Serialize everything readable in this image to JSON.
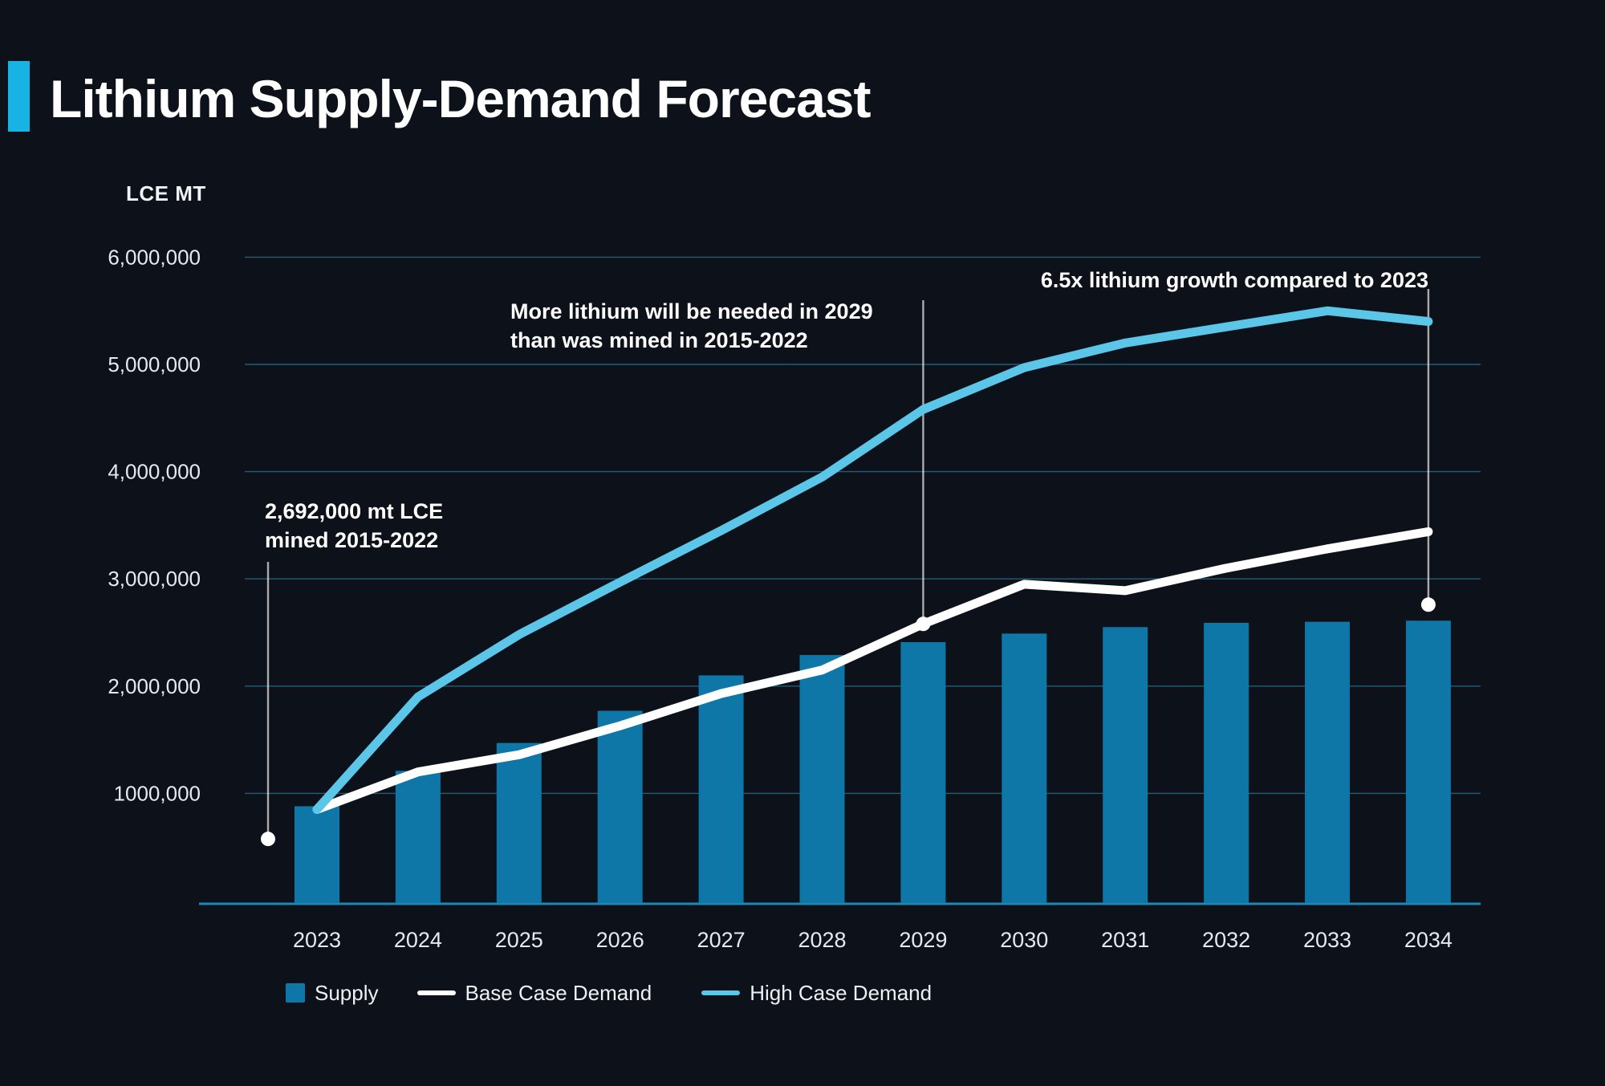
{
  "title": "Lithium Supply-Demand Forecast",
  "unit_label": "LCE MT",
  "colors": {
    "background": "#0d1119",
    "accent_bar": "#18b3e5",
    "supply_bar": "#0e77a7",
    "base_case_line": "#ffffff",
    "high_case_line": "#5cc6e9",
    "gridline": "#255d78",
    "baseline": "#1e88b5",
    "axis_text": "#e6eaee",
    "annotation_line": "rgba(255,255,255,0.65)"
  },
  "chart_data": {
    "type": "bar",
    "subtype": "bar-line combo",
    "categories": [
      "2023",
      "2024",
      "2025",
      "2026",
      "2027",
      "2028",
      "2029",
      "2030",
      "2031",
      "2032",
      "2033",
      "2034"
    ],
    "series": [
      {
        "name": "Supply",
        "type": "bar",
        "color": "#0e77a7",
        "values": [
          880000,
          1210000,
          1470000,
          1770000,
          2100000,
          2290000,
          2410000,
          2490000,
          2550000,
          2590000,
          2600000,
          2610000
        ]
      },
      {
        "name": "Base Case Demand",
        "type": "line",
        "color": "#ffffff",
        "values": [
          850000,
          1200000,
          1360000,
          1630000,
          1930000,
          2150000,
          2580000,
          2950000,
          2890000,
          3100000,
          3280000,
          3440000
        ]
      },
      {
        "name": "High Case Demand",
        "type": "line",
        "color": "#5cc6e9",
        "values": [
          850000,
          1900000,
          2480000,
          2970000,
          3450000,
          3950000,
          4580000,
          4970000,
          5200000,
          5350000,
          5500000,
          5400000
        ]
      }
    ],
    "title": "Lithium Supply-Demand Forecast",
    "xlabel": "",
    "ylabel": "LCE MT",
    "ylim": [
      0,
      6000000
    ],
    "yticks": [
      1000000,
      2000000,
      3000000,
      4000000,
      5000000,
      6000000
    ],
    "ytick_labels": [
      "1000,000",
      "2,000,000",
      "3,000,000",
      "4,000,000",
      "5,000,000",
      "6,000,000"
    ],
    "grid": true,
    "legend_position": "bottom"
  },
  "annotations": [
    {
      "lines": [
        "2,692,000 mt LCE",
        "mined 2015-2022"
      ],
      "anchor_year": null,
      "dot_value": 575000
    },
    {
      "lines": [
        "More lithium will be needed in 2029",
        "than was mined in 2015-2022"
      ],
      "anchor_year": "2029",
      "dot_value": 2580000
    },
    {
      "lines": [
        "6.5x lithium growth compared to 2023"
      ],
      "anchor_year": "2034",
      "dot_value": 2760000
    }
  ],
  "legend": {
    "supply_label": "Supply",
    "base_case_label": "Base Case Demand",
    "high_case_label": "High Case Demand"
  }
}
